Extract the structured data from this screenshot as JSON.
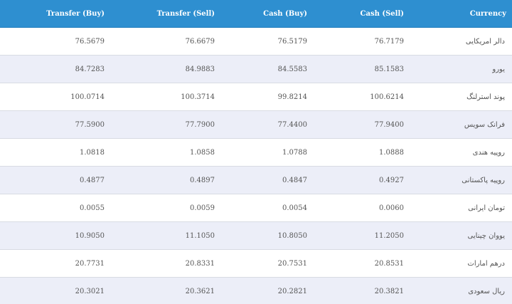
{
  "headers": {
    "transfer_buy": "Transfer (Buy)",
    "transfer_sell": "Transfer (Sell)",
    "cash_buy": "Cash (Buy)",
    "cash_sell": "Cash (Sell)",
    "currency": "Currency"
  },
  "rows": [
    {
      "transfer_buy": "76.5679",
      "transfer_sell": "76.6679",
      "cash_buy": "76.5179",
      "cash_sell": "76.7179",
      "currency": "دالر امریکایی"
    },
    {
      "transfer_buy": "84.7283",
      "transfer_sell": "84.9883",
      "cash_buy": "84.5583",
      "cash_sell": "85.1583",
      "currency": "یورو"
    },
    {
      "transfer_buy": "100.0714",
      "transfer_sell": "100.3714",
      "cash_buy": "99.8214",
      "cash_sell": "100.6214",
      "currency": "پوند استرلنگ"
    },
    {
      "transfer_buy": "77.5900",
      "transfer_sell": "77.7900",
      "cash_buy": "77.4400",
      "cash_sell": "77.9400",
      "currency": "فرانک سویس"
    },
    {
      "transfer_buy": "1.0818",
      "transfer_sell": "1.0858",
      "cash_buy": "1.0788",
      "cash_sell": "1.0888",
      "currency": "روپیه هندی"
    },
    {
      "transfer_buy": "0.4877",
      "transfer_sell": "0.4897",
      "cash_buy": "0.4847",
      "cash_sell": "0.4927",
      "currency": "روپیه پاکستانی"
    },
    {
      "transfer_buy": "0.0055",
      "transfer_sell": "0.0059",
      "cash_buy": "0.0054",
      "cash_sell": "0.0060",
      "currency": "تومان ایرانی"
    },
    {
      "transfer_buy": "10.9050",
      "transfer_sell": "11.1050",
      "cash_buy": "10.8050",
      "cash_sell": "11.2050",
      "currency": "یووان چینایی"
    },
    {
      "transfer_buy": "20.7731",
      "transfer_sell": "20.8331",
      "cash_buy": "20.7531",
      "cash_sell": "20.8531",
      "currency": "درهم امارات"
    },
    {
      "transfer_buy": "20.3021",
      "transfer_sell": "20.3621",
      "cash_buy": "20.2821",
      "cash_sell": "20.3821",
      "currency": "ریال سعودی"
    }
  ]
}
